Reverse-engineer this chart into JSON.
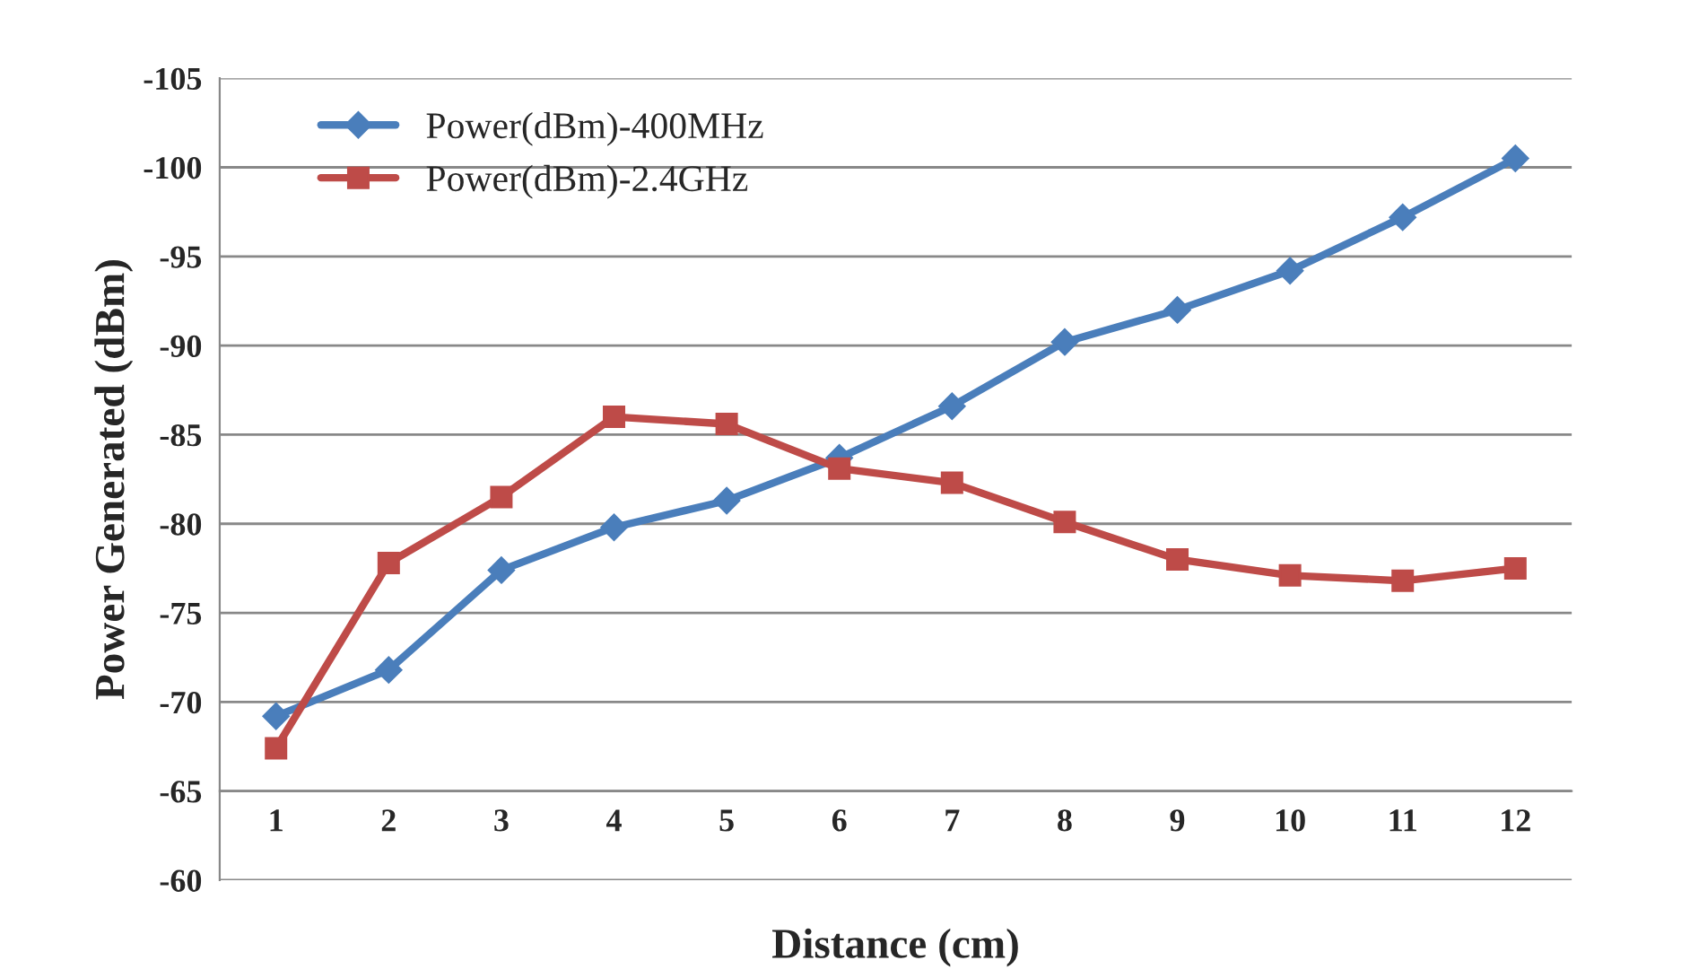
{
  "chart_data": {
    "type": "line",
    "xlabel": "Distance (cm)",
    "ylabel": "Power Generated (dBm)",
    "categories": [
      "1",
      "2",
      "3",
      "4",
      "5",
      "6",
      "7",
      "8",
      "9",
      "10",
      "11",
      "12"
    ],
    "series": [
      {
        "name": "Power(dBm)-400MHz",
        "color": "#4a7ebb",
        "marker": "diamond",
        "values": [
          -69.2,
          -71.8,
          -77.4,
          -79.8,
          -81.3,
          -83.7,
          -86.6,
          -90.2,
          -92.0,
          -94.2,
          -97.2,
          -100.5
        ]
      },
      {
        "name": "Power(dBm)-2.4GHz",
        "color": "#be4b48",
        "marker": "square",
        "values": [
          -67.4,
          -77.8,
          -81.5,
          -86.0,
          -85.6,
          -83.1,
          -82.3,
          -80.1,
          -78.0,
          -77.1,
          -76.8,
          -77.5
        ]
      }
    ],
    "ylim": [
      -60,
      -105
    ],
    "yticks": [
      -60,
      -65,
      -70,
      -75,
      -80,
      -85,
      -90,
      -95,
      -100,
      -105
    ],
    "grid": "y",
    "legend": "top left",
    "line_style": "solid"
  }
}
